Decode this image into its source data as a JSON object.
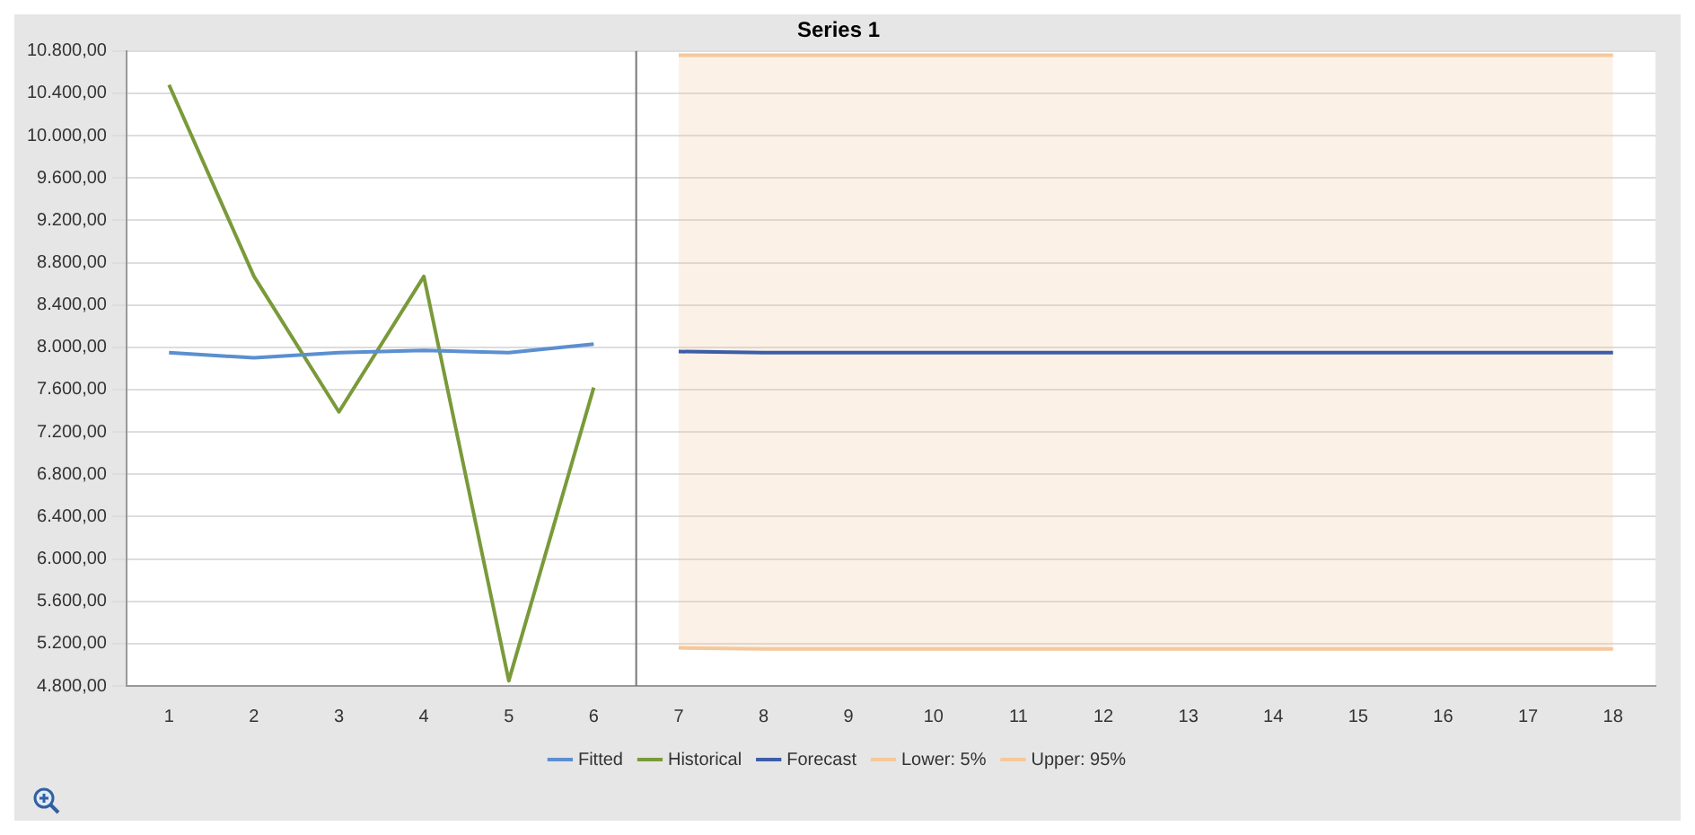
{
  "chart_data": {
    "type": "line",
    "title": "Series 1",
    "xlim": [
      0.5,
      18.5
    ],
    "xticks": [
      1,
      2,
      3,
      4,
      5,
      6,
      7,
      8,
      9,
      10,
      11,
      12,
      13,
      14,
      15,
      16,
      17,
      18
    ],
    "ylim": [
      4800,
      10800
    ],
    "yticks": [
      {
        "value": 4800,
        "label": "4.800,00"
      },
      {
        "value": 5200,
        "label": "5.200,00"
      },
      {
        "value": 5600,
        "label": "5.600,00"
      },
      {
        "value": 6000,
        "label": "6.000,00"
      },
      {
        "value": 6400,
        "label": "6.400,00"
      },
      {
        "value": 6800,
        "label": "6.800,00"
      },
      {
        "value": 7200,
        "label": "7.200,00"
      },
      {
        "value": 7600,
        "label": "7.600,00"
      },
      {
        "value": 8000,
        "label": "8.000,00"
      },
      {
        "value": 8400,
        "label": "8.400,00"
      },
      {
        "value": 8800,
        "label": "8.800,00"
      },
      {
        "value": 9200,
        "label": "9.200,00"
      },
      {
        "value": 9600,
        "label": "9.600,00"
      },
      {
        "value": 10000,
        "label": "10.000,00"
      },
      {
        "value": 10400,
        "label": "10.400,00"
      },
      {
        "value": 10800,
        "label": "10.800,00"
      }
    ],
    "grid": "y",
    "legend": "bottom",
    "marker": "none",
    "line_style": "solid",
    "ref_lines": [
      {
        "axis": "x",
        "value": 6.5,
        "color": "#777777"
      }
    ],
    "series": [
      {
        "name": "Fitted",
        "color": "#5b8fd0",
        "x": [
          1,
          2,
          3,
          4,
          5,
          6
        ],
        "values": [
          7950,
          7900,
          7950,
          7970,
          7950,
          8030
        ]
      },
      {
        "name": "Historical",
        "color": "#7a9a3a",
        "x": [
          1,
          2,
          3,
          4,
          5,
          6
        ],
        "values": [
          10480,
          8670,
          7390,
          8670,
          4850,
          7620
        ]
      },
      {
        "name": "Forecast",
        "color": "#3b5ea8",
        "x": [
          7,
          8,
          9,
          10,
          11,
          12,
          13,
          14,
          15,
          16,
          17,
          18
        ],
        "values": [
          7960,
          7950,
          7950,
          7950,
          7950,
          7950,
          7950,
          7950,
          7950,
          7950,
          7950,
          7950
        ]
      },
      {
        "name": "Lower: 5%",
        "color": "#f5c89a",
        "x": [
          7,
          8,
          9,
          10,
          11,
          12,
          13,
          14,
          15,
          16,
          17,
          18
        ],
        "values": [
          5160,
          5150,
          5150,
          5150,
          5150,
          5150,
          5150,
          5150,
          5150,
          5150,
          5150,
          5150
        ]
      },
      {
        "name": "Upper: 95%",
        "type": "area",
        "color": "#f5c89a",
        "x": [
          7,
          8,
          9,
          10,
          11,
          12,
          13,
          14,
          15,
          16,
          17,
          18
        ],
        "values": [
          10760,
          10760,
          10760,
          10760,
          10760,
          10760,
          10760,
          10760,
          10760,
          10760,
          10760,
          10760
        ]
      }
    ]
  }
}
